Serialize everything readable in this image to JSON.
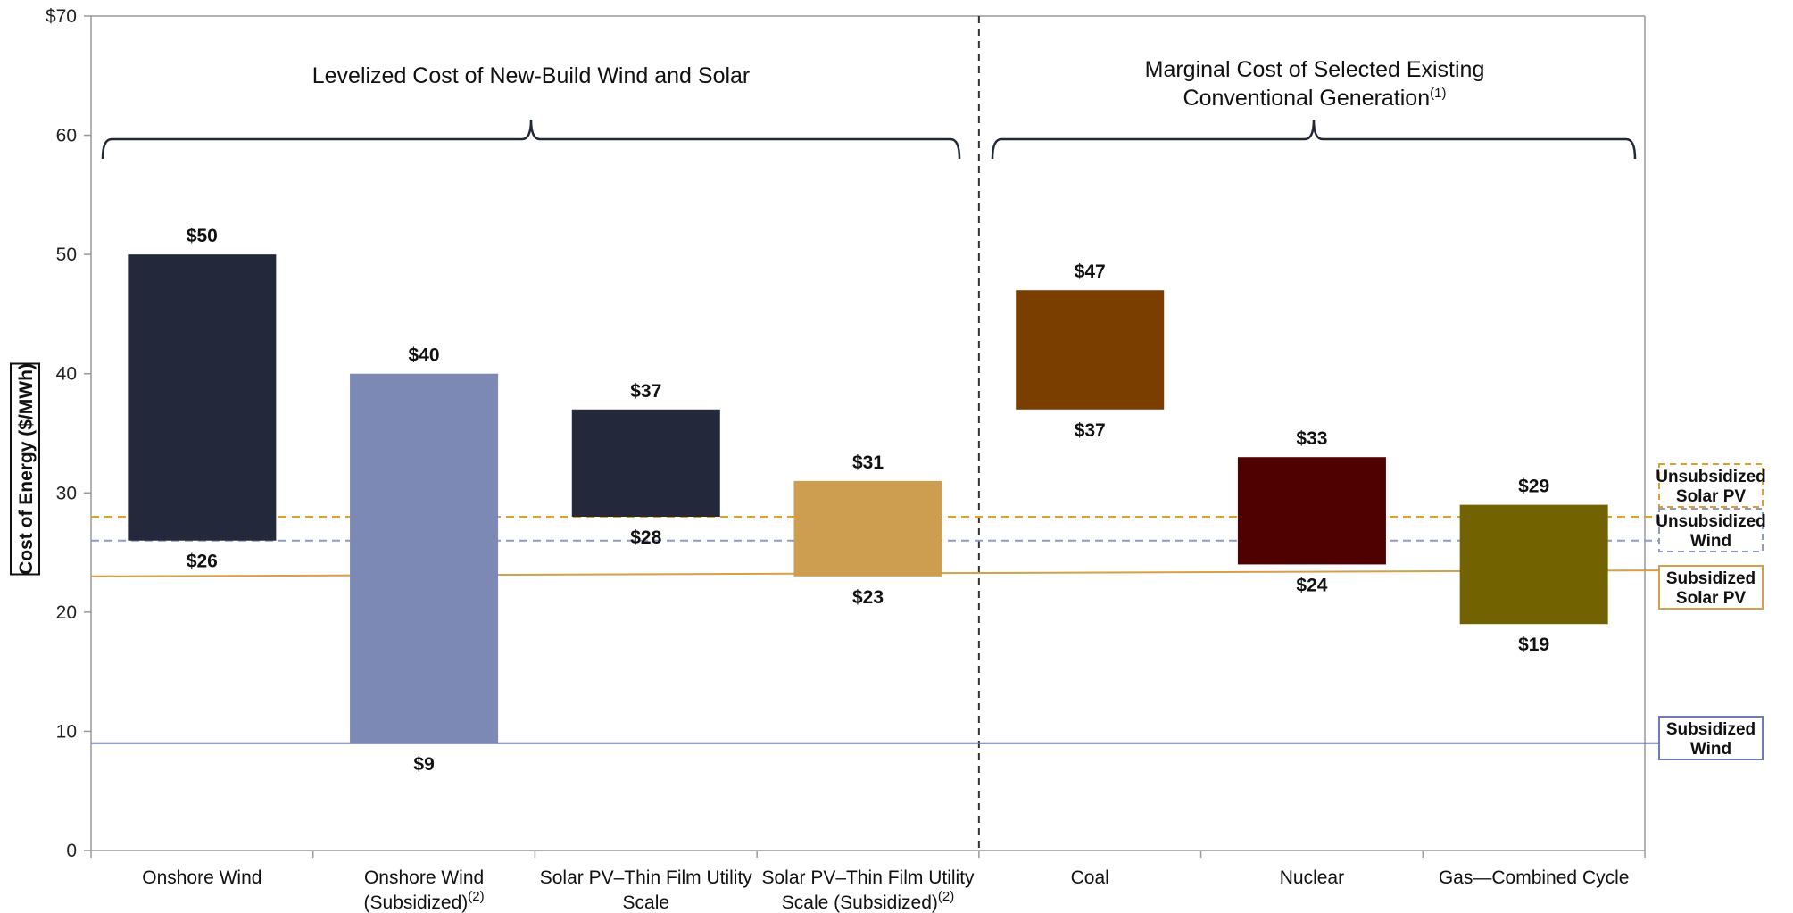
{
  "chart_data": {
    "type": "bar",
    "subtype": "floating-range",
    "ylabel": "Cost of Energy ($/MWh)",
    "ylim": [
      0,
      70
    ],
    "y_ticks": [
      "0",
      "10",
      "20",
      "30",
      "40",
      "50",
      "60",
      "$70"
    ],
    "grid": false,
    "groups": [
      {
        "label": "Levelized Cost of New-Build Wind and Solar",
        "categories": [
          0,
          1,
          2,
          3
        ]
      },
      {
        "label_lines": [
          "Marginal Cost of Selected Existing",
          "Conventional Generation"
        ],
        "footnote": "(1)",
        "categories": [
          4,
          5,
          6
        ]
      }
    ],
    "categories": [
      {
        "lines": [
          "Onshore Wind"
        ],
        "low": 26,
        "high": 50,
        "low_label": "$26",
        "high_label": "$50",
        "color": "#23283B"
      },
      {
        "lines": [
          "Onshore Wind",
          "(Subsidized)"
        ],
        "footnote": "(2)",
        "low": 9,
        "high": 40,
        "low_label": "$9",
        "high_label": "$40",
        "color": "#7C89B5"
      },
      {
        "lines": [
          "Solar PV–Thin Film Utility",
          "Scale"
        ],
        "low": 28,
        "high": 37,
        "low_label": "$28",
        "high_label": "$37",
        "color": "#23283B"
      },
      {
        "lines": [
          "Solar PV–Thin Film Utility",
          "Scale (Subsidized)"
        ],
        "footnote": "(2)",
        "low": 23,
        "high": 31,
        "low_label": "$23",
        "high_label": "$31",
        "color": "#CD9E4F"
      },
      {
        "lines": [
          "Coal"
        ],
        "low": 37,
        "high": 47,
        "low_label": "$37",
        "high_label": "$47",
        "color": "#7A3F00"
      },
      {
        "lines": [
          "Nuclear"
        ],
        "low": 24,
        "high": 33,
        "low_label": "$24",
        "high_label": "$33",
        "color": "#4F0000"
      },
      {
        "lines": [
          "Gas—Combined Cycle"
        ],
        "low": 19,
        "high": 29,
        "low_label": "$19",
        "high_label": "$29",
        "color": "#726300"
      }
    ],
    "reference_lines": [
      {
        "lines": [
          "Unsubsidized",
          "Solar PV"
        ],
        "y": 28,
        "style": "dashed",
        "color": "#E0A030"
      },
      {
        "lines": [
          "Unsubsidized",
          "Wind"
        ],
        "y": 26,
        "style": "dashed",
        "color": "#8F9AC8"
      },
      {
        "lines": [
          "Subsidized",
          "Solar PV"
        ],
        "y_start": 23,
        "y_end": 23.5,
        "style": "solid",
        "color": "#D4A04A"
      },
      {
        "lines": [
          "Subsidized",
          "Wind"
        ],
        "y": 9,
        "style": "solid",
        "color": "#6F7BB3"
      }
    ]
  }
}
